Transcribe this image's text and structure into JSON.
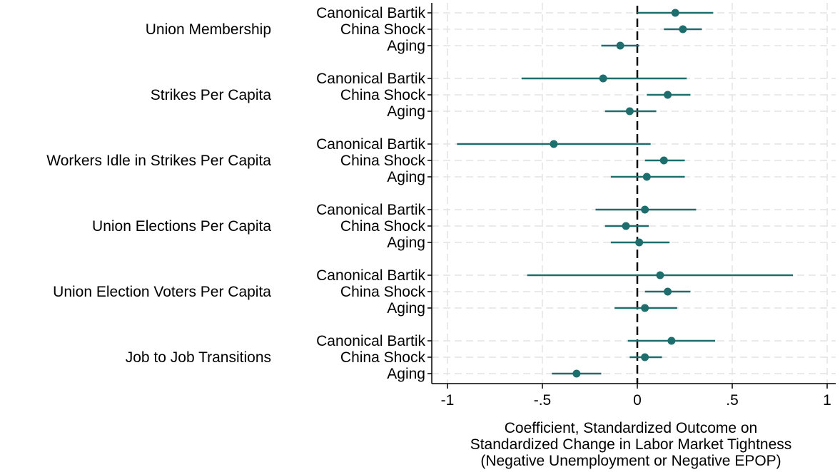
{
  "chart_data": {
    "type": "scatter",
    "subtype": "coefficient-plot",
    "title": "",
    "xlabel_lines": [
      "Coefficient, Standardized Outcome on",
      "Standardized Change in Labor Market Tightness",
      "(Negative Unemployment or Negative EPOP)"
    ],
    "ylabel": "",
    "xlim": [
      -1,
      1
    ],
    "xticks": [
      {
        "value": -1,
        "label": "-1"
      },
      {
        "value": -0.5,
        "label": "-.5"
      },
      {
        "value": 0,
        "label": "0"
      },
      {
        "value": 0.5,
        "label": ".5"
      },
      {
        "value": 1,
        "label": "1"
      }
    ],
    "reference_line": {
      "x": 0,
      "style": "dashed"
    },
    "grid": true,
    "legend": "none",
    "colors": {
      "marker": "#1f6e6e",
      "ci": "#1f6e6e",
      "grid": "#e4e4e4",
      "axis": "#000000"
    },
    "groups": [
      {
        "name": "Union Membership",
        "items": [
          {
            "label": "Canonical Bartik",
            "coef": 0.2,
            "ci": [
              0.0,
              0.4
            ]
          },
          {
            "label": "China Shock",
            "coef": 0.24,
            "ci": [
              0.14,
              0.34
            ]
          },
          {
            "label": "Aging",
            "coef": -0.09,
            "ci": [
              -0.19,
              0.01
            ]
          }
        ]
      },
      {
        "name": "Strikes Per Capita",
        "items": [
          {
            "label": "Canonical Bartik",
            "coef": -0.18,
            "ci": [
              -0.61,
              0.26
            ]
          },
          {
            "label": "China Shock",
            "coef": 0.16,
            "ci": [
              0.05,
              0.28
            ]
          },
          {
            "label": "Aging",
            "coef": -0.04,
            "ci": [
              -0.17,
              0.1
            ]
          }
        ]
      },
      {
        "name": "Workers Idle in Strikes Per Capita",
        "items": [
          {
            "label": "Canonical Bartik",
            "coef": -0.44,
            "ci": [
              -0.95,
              0.07
            ]
          },
          {
            "label": "China Shock",
            "coef": 0.14,
            "ci": [
              0.04,
              0.25
            ]
          },
          {
            "label": "Aging",
            "coef": 0.05,
            "ci": [
              -0.14,
              0.25
            ]
          }
        ]
      },
      {
        "name": "Union Elections Per Capita",
        "items": [
          {
            "label": "Canonical Bartik",
            "coef": 0.04,
            "ci": [
              -0.22,
              0.31
            ]
          },
          {
            "label": "China Shock",
            "coef": -0.06,
            "ci": [
              -0.17,
              0.06
            ]
          },
          {
            "label": "Aging",
            "coef": 0.01,
            "ci": [
              -0.14,
              0.17
            ]
          }
        ]
      },
      {
        "name": "Union Election Voters Per Capita",
        "items": [
          {
            "label": "Canonical Bartik",
            "coef": 0.12,
            "ci": [
              -0.58,
              0.82
            ]
          },
          {
            "label": "China Shock",
            "coef": 0.16,
            "ci": [
              0.04,
              0.28
            ]
          },
          {
            "label": "Aging",
            "coef": 0.04,
            "ci": [
              -0.12,
              0.21
            ]
          }
        ]
      },
      {
        "name": "Job to Job Transitions",
        "items": [
          {
            "label": "Canonical Bartik",
            "coef": 0.18,
            "ci": [
              -0.05,
              0.41
            ]
          },
          {
            "label": "China Shock",
            "coef": 0.04,
            "ci": [
              -0.04,
              0.13
            ]
          },
          {
            "label": "Aging",
            "coef": -0.32,
            "ci": [
              -0.45,
              -0.19
            ]
          }
        ]
      }
    ]
  }
}
